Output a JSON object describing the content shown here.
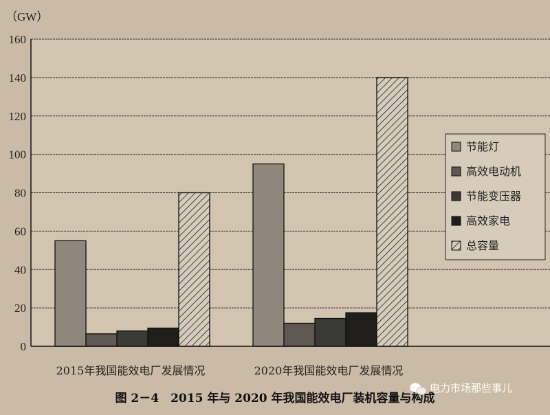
{
  "chart_data": {
    "type": "bar",
    "title": "图 2－4　2015 年与 2020 年我国能效电厂装机容量与构成",
    "ylabel": "（GW）",
    "xlabel": "",
    "ylim": [
      0,
      160
    ],
    "yticks": [
      0,
      20,
      40,
      60,
      80,
      100,
      120,
      140,
      160
    ],
    "grid": true,
    "legend_position": "right",
    "categories": [
      "2015年我国能效电厂发展情况",
      "2020年我国能效电厂发展情况"
    ],
    "series": [
      {
        "name": "节能灯",
        "values": [
          55,
          95
        ],
        "color": "#8f877c",
        "pattern": "solid"
      },
      {
        "name": "高效电动机",
        "values": [
          6.5,
          12
        ],
        "color": "#5f5852",
        "pattern": "solid"
      },
      {
        "name": "节能变压器",
        "values": [
          8,
          14.5
        ],
        "color": "#3a3a36",
        "pattern": "solid"
      },
      {
        "name": "高效家电",
        "values": [
          9.5,
          17.5
        ],
        "color": "#1f1e1c",
        "pattern": "solid"
      },
      {
        "name": "总容量",
        "values": [
          80,
          140
        ],
        "color": "#d6ccbb",
        "pattern": "hatch"
      }
    ]
  },
  "watermark": {
    "text": "电力市场那些事儿",
    "icon": "wechat-icon"
  }
}
